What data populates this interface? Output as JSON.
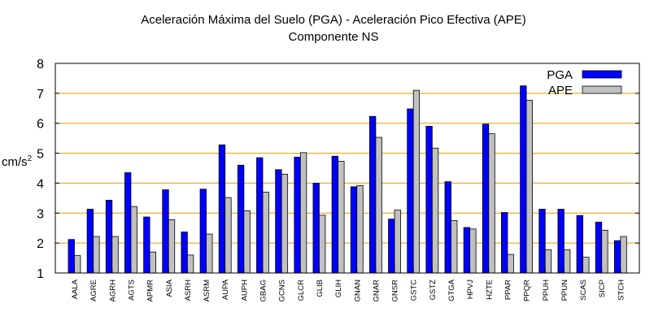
{
  "chart_data": {
    "type": "bar",
    "title": "Aceleración Máxima del Suelo (PGA) -  Aceleración Pico Efectiva (APE)",
    "subtitle": "Componente NS",
    "xlabel": "",
    "ylabel": "cm/s",
    "ylabel_superscript": "2",
    "ylim": [
      1,
      8
    ],
    "yticks": [
      "1",
      "2",
      "3",
      "4",
      "5",
      "6",
      "7",
      "8"
    ],
    "grid": "horizontal",
    "legend_position": "top-right",
    "categories": [
      "AALA",
      "AGRE",
      "AGRH",
      "AGTS",
      "APMR",
      "ASIA",
      "ASRH",
      "ASRM",
      "AUPA",
      "AUPH",
      "GBAG",
      "GCNS",
      "GLCR",
      "GLIB",
      "GLIH",
      "GNAN",
      "GNAR",
      "GNSR",
      "GSTC",
      "GSTZ",
      "GTGA",
      "HPVJ",
      "HZTE",
      "PPAR",
      "PPQR",
      "PPUH",
      "PPUN",
      "SCAS",
      "SICP",
      "STCH"
    ],
    "series": [
      {
        "name": "PGA",
        "color": "#0000ff",
        "values": [
          2.12,
          3.13,
          3.43,
          4.35,
          2.87,
          3.78,
          2.37,
          3.8,
          5.28,
          4.6,
          4.85,
          4.45,
          4.87,
          4.0,
          4.9,
          3.88,
          6.23,
          2.8,
          6.48,
          5.9,
          4.05,
          2.52,
          5.97,
          3.02,
          7.25,
          3.13,
          3.13,
          2.92,
          2.7,
          2.08
        ]
      },
      {
        "name": "APE",
        "color": "#c0c0c0",
        "values": [
          1.58,
          2.22,
          2.22,
          3.22,
          1.7,
          2.78,
          1.6,
          2.3,
          3.52,
          3.08,
          3.7,
          4.3,
          5.02,
          2.93,
          4.73,
          3.92,
          5.53,
          3.1,
          7.1,
          5.17,
          2.75,
          2.47,
          5.65,
          1.62,
          6.77,
          1.78,
          1.78,
          1.53,
          2.43,
          2.22
        ]
      }
    ]
  }
}
